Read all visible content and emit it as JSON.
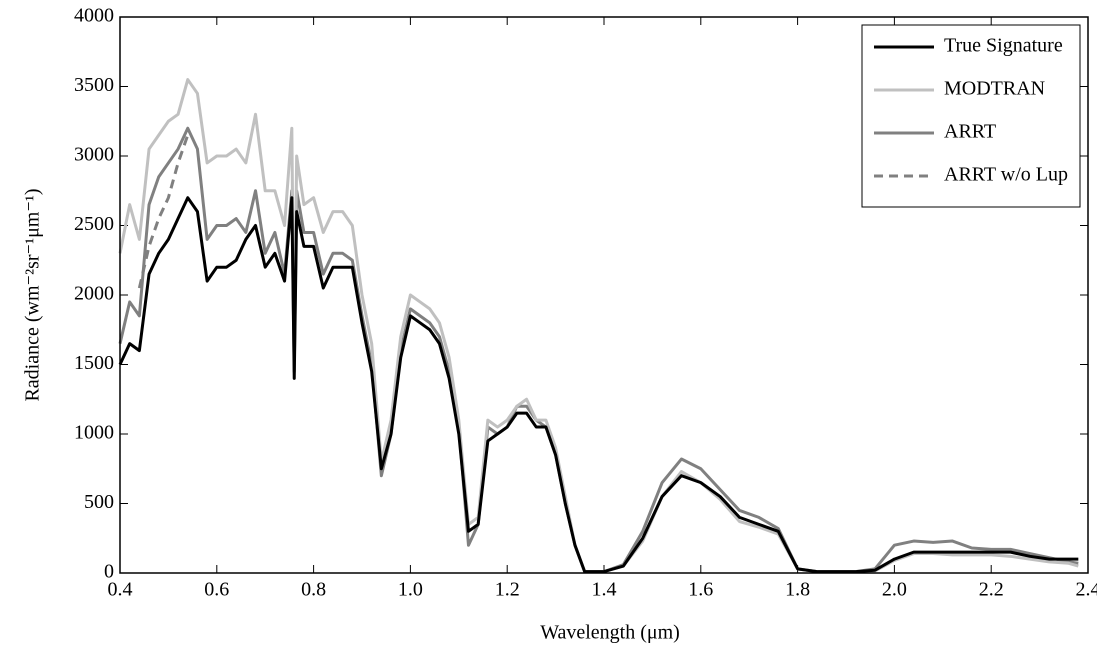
{
  "chart_data": {
    "type": "line",
    "xlabel": "Wavelength (μm)",
    "ylabel": "Radiance (wm⁻²sr⁻¹μm⁻¹)",
    "x": [
      0.4,
      0.42,
      0.44,
      0.46,
      0.48,
      0.5,
      0.52,
      0.54,
      0.56,
      0.58,
      0.6,
      0.62,
      0.64,
      0.66,
      0.68,
      0.7,
      0.72,
      0.74,
      0.755,
      0.76,
      0.765,
      0.78,
      0.8,
      0.82,
      0.84,
      0.86,
      0.88,
      0.9,
      0.92,
      0.94,
      0.96,
      0.98,
      1.0,
      1.02,
      1.04,
      1.06,
      1.08,
      1.1,
      1.12,
      1.14,
      1.16,
      1.18,
      1.2,
      1.22,
      1.24,
      1.26,
      1.28,
      1.3,
      1.32,
      1.34,
      1.36,
      1.38,
      1.4,
      1.44,
      1.48,
      1.52,
      1.56,
      1.6,
      1.64,
      1.68,
      1.72,
      1.76,
      1.8,
      1.84,
      1.88,
      1.92,
      1.96,
      2.0,
      2.04,
      2.08,
      2.12,
      2.16,
      2.2,
      2.24,
      2.28,
      2.32,
      2.36,
      2.38
    ],
    "series": [
      {
        "name": "True Signature",
        "color": "#000000",
        "linestyle": "solid",
        "values": [
          1500,
          1650,
          1600,
          2150,
          2300,
          2400,
          2550,
          2700,
          2600,
          2100,
          2200,
          2200,
          2250,
          2400,
          2500,
          2200,
          2300,
          2100,
          2700,
          1400,
          2600,
          2350,
          2350,
          2050,
          2200,
          2200,
          2200,
          1800,
          1450,
          750,
          1000,
          1550,
          1850,
          1800,
          1750,
          1650,
          1400,
          1000,
          300,
          350,
          950,
          1000,
          1050,
          1150,
          1150,
          1050,
          1050,
          850,
          500,
          200,
          10,
          10,
          10,
          50,
          250,
          550,
          700,
          650,
          550,
          400,
          350,
          300,
          30,
          10,
          10,
          10,
          20,
          100,
          150,
          150,
          150,
          150,
          150,
          150,
          120,
          100,
          100,
          100
        ]
      },
      {
        "name": "MODTRAN",
        "color": "#c0c0c0",
        "linestyle": "solid",
        "values": [
          2300,
          2650,
          2400,
          3050,
          3150,
          3250,
          3300,
          3550,
          3450,
          2950,
          3000,
          3000,
          3050,
          2950,
          3300,
          2750,
          2750,
          2500,
          3200,
          1450,
          3000,
          2650,
          2700,
          2450,
          2600,
          2600,
          2500,
          2000,
          1650,
          800,
          1100,
          1700,
          2000,
          1950,
          1900,
          1800,
          1550,
          1100,
          350,
          400,
          1100,
          1050,
          1100,
          1200,
          1250,
          1100,
          1100,
          900,
          550,
          200,
          10,
          10,
          10,
          50,
          230,
          550,
          730,
          650,
          530,
          370,
          330,
          280,
          30,
          10,
          10,
          10,
          15,
          90,
          140,
          140,
          130,
          130,
          130,
          120,
          100,
          80,
          70,
          50
        ]
      },
      {
        "name": "ARRT",
        "color": "#808080",
        "linestyle": "solid",
        "values": [
          1650,
          1950,
          1850,
          2650,
          2850,
          2950,
          3050,
          3200,
          3050,
          2400,
          2500,
          2500,
          2550,
          2450,
          2750,
          2300,
          2450,
          2150,
          2750,
          1450,
          2750,
          2450,
          2450,
          2150,
          2300,
          2300,
          2250,
          1850,
          1500,
          700,
          1000,
          1600,
          1900,
          1850,
          1800,
          1700,
          1450,
          1050,
          200,
          350,
          1050,
          1000,
          1050,
          1200,
          1200,
          1100,
          1050,
          850,
          500,
          200,
          10,
          10,
          10,
          60,
          300,
          650,
          820,
          750,
          600,
          450,
          400,
          320,
          30,
          10,
          10,
          10,
          30,
          200,
          230,
          220,
          230,
          180,
          170,
          170,
          140,
          110,
          80,
          70
        ]
      },
      {
        "name": "ARRT w/o Lup",
        "color": "#808080",
        "linestyle": "dashed",
        "values": [
          null,
          null,
          2050,
          2350,
          2550,
          2700,
          2950,
          3150,
          null,
          null,
          null,
          null,
          null,
          null,
          null,
          null,
          null,
          null,
          null,
          null,
          null,
          null,
          null,
          null,
          null,
          null,
          null,
          null,
          null,
          null,
          null,
          null,
          null,
          null,
          null,
          null,
          null,
          null,
          null,
          null,
          null,
          null,
          null,
          null,
          null,
          null,
          null,
          null,
          null,
          null,
          null,
          null,
          null,
          null,
          null,
          null,
          null,
          null,
          null,
          null,
          null,
          null,
          null,
          null,
          null,
          null,
          null,
          null,
          null,
          null,
          null,
          null,
          null,
          null,
          null,
          null,
          null,
          null
        ]
      }
    ],
    "xlim": [
      0.4,
      2.4
    ],
    "xticks": [
      0.4,
      0.6,
      0.8,
      {
        "value": 1,
        "label": "1.0"
      },
      1.2,
      1.4,
      1.6,
      1.8,
      {
        "value": 2,
        "label": "2.0"
      },
      2.2,
      2.4
    ],
    "ylim": [
      0,
      4000
    ],
    "yticks": [
      0,
      500,
      1000,
      1500,
      2000,
      2500,
      3000,
      3500,
      4000
    ],
    "legend": "upper-right"
  }
}
